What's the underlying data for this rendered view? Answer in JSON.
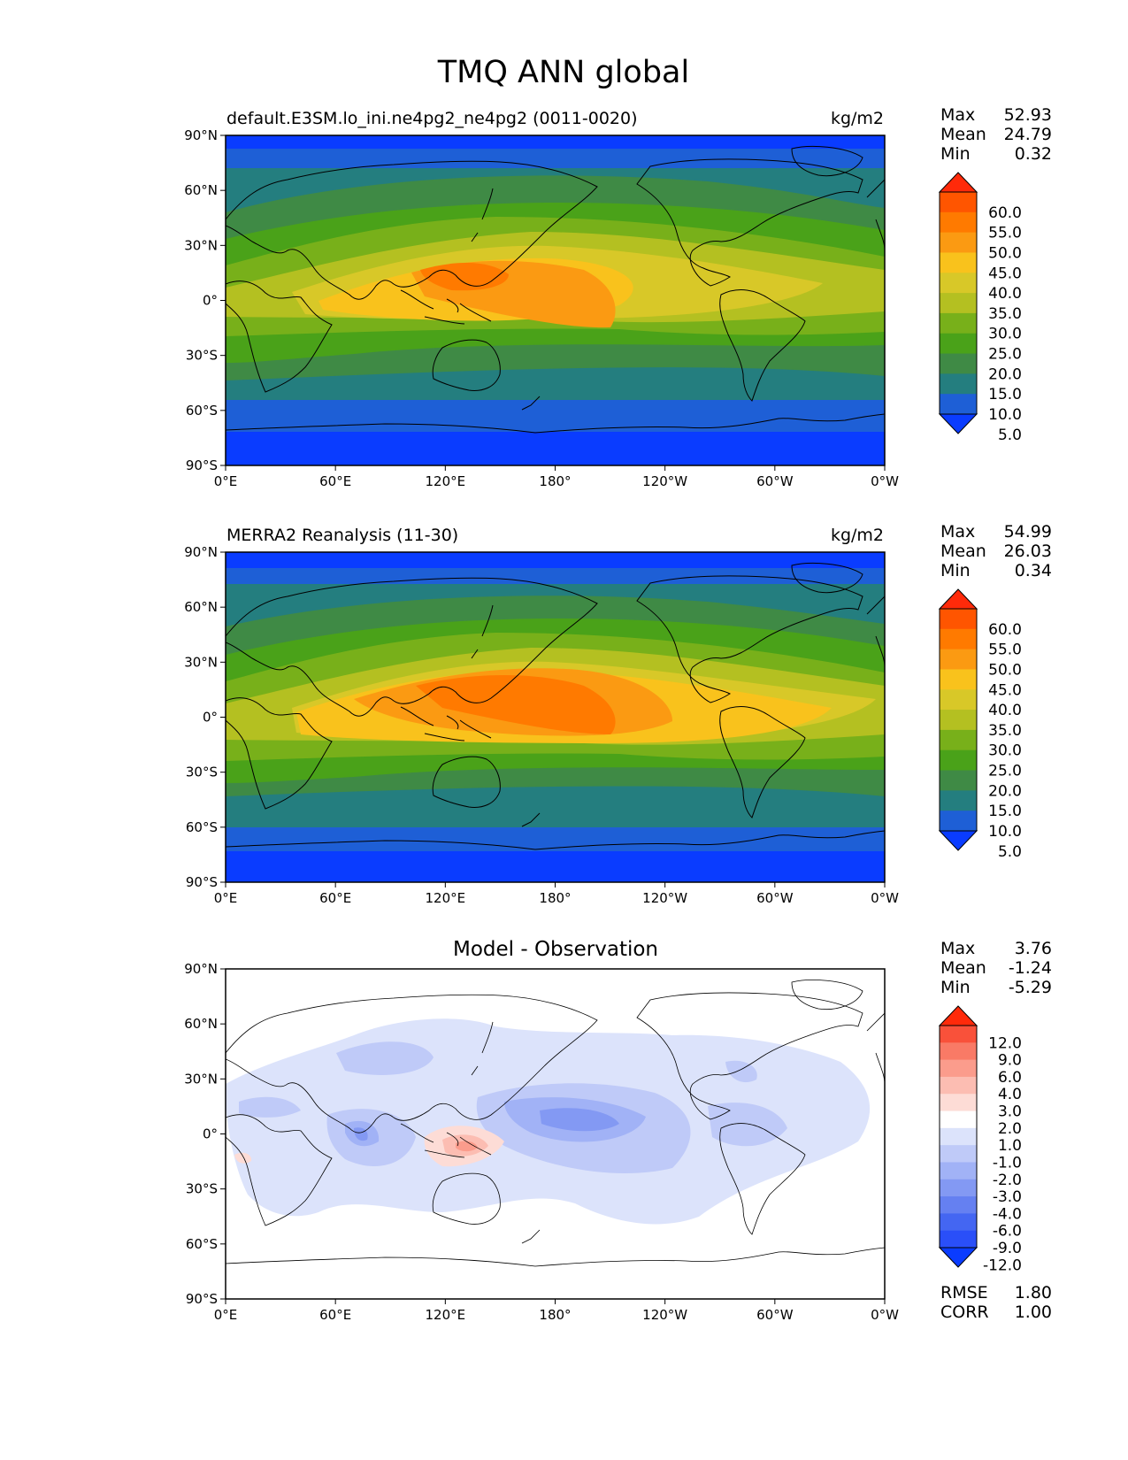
{
  "figure": {
    "title": "TMQ ANN global",
    "x_ticks": [
      "0°E",
      "60°E",
      "120°E",
      "180°",
      "120°W",
      "60°W",
      "0°W"
    ],
    "y_ticks": [
      "90°N",
      "60°N",
      "30°N",
      "0°",
      "30°S",
      "60°S",
      "90°S"
    ]
  },
  "panels": [
    {
      "title_left": "default.E3SM.lo_ini.ne4pg2_ne4pg2 (0011-0020)",
      "title_right": "kg/m2",
      "title_center": "",
      "stats": [
        {
          "label": "Max",
          "value": "52.93"
        },
        {
          "label": "Mean",
          "value": "24.79"
        },
        {
          "label": "Min",
          "value": "0.32"
        }
      ],
      "colorbar_labels": [
        "60.0",
        "55.0",
        "50.0",
        "45.0",
        "40.0",
        "35.0",
        "30.0",
        "25.0",
        "20.0",
        "15.0",
        "10.0",
        "5.0"
      ],
      "colorbar_colors": [
        "#ff2a0a",
        "#ff5500",
        "#ff7a00",
        "#fb9a12",
        "#f9c21c",
        "#d8c828",
        "#b4c021",
        "#78b01a",
        "#4aa219",
        "#3f8a45",
        "#247e7f",
        "#1e5fd6",
        "#0a3cff"
      ],
      "extra_stats": []
    },
    {
      "title_left": "MERRA2 Reanalysis (11-30)",
      "title_right": "kg/m2",
      "title_center": "",
      "stats": [
        {
          "label": "Max",
          "value": "54.99"
        },
        {
          "label": "Mean",
          "value": "26.03"
        },
        {
          "label": "Min",
          "value": "0.34"
        }
      ],
      "colorbar_labels": [
        "60.0",
        "55.0",
        "50.0",
        "45.0",
        "40.0",
        "35.0",
        "30.0",
        "25.0",
        "20.0",
        "15.0",
        "10.0",
        "5.0"
      ],
      "colorbar_colors": [
        "#ff2a0a",
        "#ff5500",
        "#ff7a00",
        "#fb9a12",
        "#f9c21c",
        "#d8c828",
        "#b4c021",
        "#78b01a",
        "#4aa219",
        "#3f8a45",
        "#247e7f",
        "#1e5fd6",
        "#0a3cff"
      ],
      "extra_stats": []
    },
    {
      "title_left": "",
      "title_right": "",
      "title_center": "Model - Observation",
      "stats": [
        {
          "label": "Max",
          "value": "3.76"
        },
        {
          "label": "Mean",
          "value": "-1.24"
        },
        {
          "label": "Min",
          "value": "-5.29"
        }
      ],
      "colorbar_labels": [
        "12.0",
        "9.0",
        "6.0",
        "4.0",
        "3.0",
        "2.0",
        "1.0",
        "-1.0",
        "-2.0",
        "-3.0",
        "-4.0",
        "-6.0",
        "-9.0",
        "-12.0"
      ],
      "colorbar_colors": [
        "#ff2a0a",
        "#f9513a",
        "#f97a66",
        "#fb9c8c",
        "#fcbdb2",
        "#fddcd6",
        "#ffffff",
        "#dce3fb",
        "#bfcaf8",
        "#a1b2f6",
        "#8399f3",
        "#6580f1",
        "#4466f2",
        "#2a4ff8",
        "#0a3cff"
      ],
      "extra_stats": [
        {
          "label": "RMSE",
          "value": "1.80"
        },
        {
          "label": "CORR",
          "value": "1.00"
        }
      ]
    }
  ]
}
